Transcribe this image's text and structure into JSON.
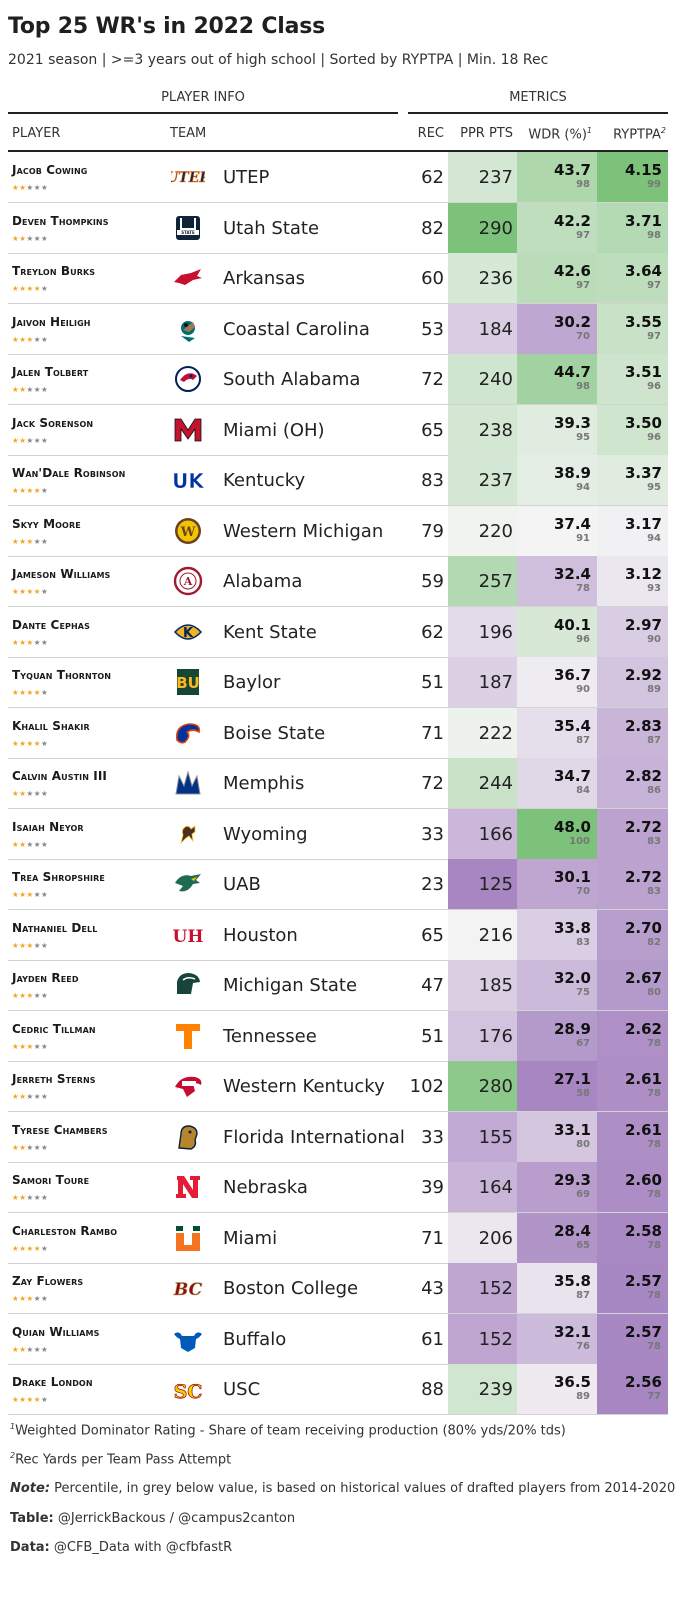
{
  "title": "Top 25 WR's in 2022 Class",
  "subtitle": "2021 season | >=3 years out of high school | Sorted by RYPTPA | Min. 18 Rec",
  "spanners": {
    "player_info": "PLAYER INFO",
    "metrics": "METRICS"
  },
  "columns": {
    "player": "PLAYER",
    "team": "TEAM",
    "rec": "REC",
    "ppr": "PPR PTS",
    "wdr": "WDR (%)",
    "wdr_sup": "1",
    "ryp": "RYPTPA",
    "ryp_sup": "2"
  },
  "chart_data": {
    "type": "table",
    "columns": [
      "PLAYER",
      "TEAM",
      "REC",
      "PPR PTS",
      "WDR (%)",
      "RYPTPA"
    ],
    "rows": [
      {
        "player": "Jacob Cowing",
        "stars": 2,
        "team": "UTEP",
        "logo": "utep-logo",
        "rec": 62,
        "ppr": 237,
        "wdr": "43.7",
        "wdr_pct": 98,
        "ryp": "4.15",
        "ryp_pct": 99
      },
      {
        "player": "Deven Thompkins",
        "stars": 2,
        "team": "Utah State",
        "logo": "utah-state-logo",
        "rec": 82,
        "ppr": 290,
        "wdr": "42.2",
        "wdr_pct": 97,
        "ryp": "3.71",
        "ryp_pct": 98
      },
      {
        "player": "Treylon Burks",
        "stars": 4,
        "team": "Arkansas",
        "logo": "arkansas-logo",
        "rec": 60,
        "ppr": 236,
        "wdr": "42.6",
        "wdr_pct": 97,
        "ryp": "3.64",
        "ryp_pct": 97
      },
      {
        "player": "Jaivon Heiligh",
        "stars": 3,
        "team": "Coastal Carolina",
        "logo": "coastal-carolina-logo",
        "rec": 53,
        "ppr": 184,
        "wdr": "30.2",
        "wdr_pct": 70,
        "ryp": "3.55",
        "ryp_pct": 97
      },
      {
        "player": "Jalen Tolbert",
        "stars": 2,
        "team": "South Alabama",
        "logo": "south-alabama-logo",
        "rec": 72,
        "ppr": 240,
        "wdr": "44.7",
        "wdr_pct": 98,
        "ryp": "3.51",
        "ryp_pct": 96
      },
      {
        "player": "Jack Sorenson",
        "stars": 2,
        "team": "Miami (OH)",
        "logo": "miami-oh-logo",
        "rec": 65,
        "ppr": 238,
        "wdr": "39.3",
        "wdr_pct": 95,
        "ryp": "3.50",
        "ryp_pct": 96
      },
      {
        "player": "Wan'Dale Robinson",
        "stars": 4,
        "team": "Kentucky",
        "logo": "kentucky-logo",
        "rec": 83,
        "ppr": 237,
        "wdr": "38.9",
        "wdr_pct": 94,
        "ryp": "3.37",
        "ryp_pct": 95
      },
      {
        "player": "Skyy Moore",
        "stars": 3,
        "team": "Western Michigan",
        "logo": "western-michigan-logo",
        "rec": 79,
        "ppr": 220,
        "wdr": "37.4",
        "wdr_pct": 91,
        "ryp": "3.17",
        "ryp_pct": 94
      },
      {
        "player": "Jameson Williams",
        "stars": 4,
        "team": "Alabama",
        "logo": "alabama-logo",
        "rec": 59,
        "ppr": 257,
        "wdr": "32.4",
        "wdr_pct": 78,
        "ryp": "3.12",
        "ryp_pct": 93
      },
      {
        "player": "Dante Cephas",
        "stars": 3,
        "team": "Kent State",
        "logo": "kent-state-logo",
        "rec": 62,
        "ppr": 196,
        "wdr": "40.1",
        "wdr_pct": 96,
        "ryp": "2.97",
        "ryp_pct": 90
      },
      {
        "player": "Tyquan Thornton",
        "stars": 4,
        "team": "Baylor",
        "logo": "baylor-logo",
        "rec": 51,
        "ppr": 187,
        "wdr": "36.7",
        "wdr_pct": 90,
        "ryp": "2.92",
        "ryp_pct": 89
      },
      {
        "player": "Khalil Shakir",
        "stars": 4,
        "team": "Boise State",
        "logo": "boise-state-logo",
        "rec": 71,
        "ppr": 222,
        "wdr": "35.4",
        "wdr_pct": 87,
        "ryp": "2.83",
        "ryp_pct": 87
      },
      {
        "player": "Calvin Austin III",
        "stars": 2,
        "team": "Memphis",
        "logo": "memphis-logo",
        "rec": 72,
        "ppr": 244,
        "wdr": "34.7",
        "wdr_pct": 84,
        "ryp": "2.82",
        "ryp_pct": 86
      },
      {
        "player": "Isaiah Neyor",
        "stars": 2,
        "team": "Wyoming",
        "logo": "wyoming-logo",
        "rec": 33,
        "ppr": 166,
        "wdr": "48.0",
        "wdr_pct": 100,
        "ryp": "2.72",
        "ryp_pct": 83
      },
      {
        "player": "Trea Shropshire",
        "stars": 3,
        "team": "UAB",
        "logo": "uab-logo",
        "rec": 23,
        "ppr": 125,
        "wdr": "30.1",
        "wdr_pct": 70,
        "ryp": "2.72",
        "ryp_pct": 83
      },
      {
        "player": "Nathaniel Dell",
        "stars": 3,
        "team": "Houston",
        "logo": "houston-logo",
        "rec": 65,
        "ppr": 216,
        "wdr": "33.8",
        "wdr_pct": 83,
        "ryp": "2.70",
        "ryp_pct": 82
      },
      {
        "player": "Jayden Reed",
        "stars": 3,
        "team": "Michigan State",
        "logo": "michigan-state-logo",
        "rec": 47,
        "ppr": 185,
        "wdr": "32.0",
        "wdr_pct": 75,
        "ryp": "2.67",
        "ryp_pct": 80
      },
      {
        "player": "Cedric Tillman",
        "stars": 3,
        "team": "Tennessee",
        "logo": "tennessee-logo",
        "rec": 51,
        "ppr": 176,
        "wdr": "28.9",
        "wdr_pct": 67,
        "ryp": "2.62",
        "ryp_pct": 78
      },
      {
        "player": "Jerreth Sterns",
        "stars": 2,
        "team": "Western Kentucky",
        "logo": "western-kentucky-logo",
        "rec": 102,
        "ppr": 280,
        "wdr": "27.1",
        "wdr_pct": 58,
        "ryp": "2.61",
        "ryp_pct": 78
      },
      {
        "player": "Tyrese Chambers",
        "stars": 2,
        "team": "Florida International",
        "logo": "fiu-logo",
        "rec": 33,
        "ppr": 155,
        "wdr": "33.1",
        "wdr_pct": 80,
        "ryp": "2.61",
        "ryp_pct": 78
      },
      {
        "player": "Samori Toure",
        "stars": 2,
        "team": "Nebraska",
        "logo": "nebraska-logo",
        "rec": 39,
        "ppr": 164,
        "wdr": "29.3",
        "wdr_pct": 69,
        "ryp": "2.60",
        "ryp_pct": 78
      },
      {
        "player": "Charleston Rambo",
        "stars": 4,
        "team": "Miami",
        "logo": "miami-logo",
        "rec": 71,
        "ppr": 206,
        "wdr": "28.4",
        "wdr_pct": 65,
        "ryp": "2.58",
        "ryp_pct": 78
      },
      {
        "player": "Zay Flowers",
        "stars": 3,
        "team": "Boston College",
        "logo": "boston-college-logo",
        "rec": 43,
        "ppr": 152,
        "wdr": "35.8",
        "wdr_pct": 87,
        "ryp": "2.57",
        "ryp_pct": 78
      },
      {
        "player": "Quian Williams",
        "stars": 2,
        "team": "Buffalo",
        "logo": "buffalo-logo",
        "rec": 61,
        "ppr": 152,
        "wdr": "32.1",
        "wdr_pct": 76,
        "ryp": "2.57",
        "ryp_pct": 78
      },
      {
        "player": "Drake London",
        "stars": 4,
        "team": "USC",
        "logo": "usc-logo",
        "rec": 88,
        "ppr": 239,
        "wdr": "36.5",
        "wdr_pct": 89,
        "ryp": "2.56",
        "ryp_pct": 77
      }
    ]
  },
  "colors": {
    "low": "#a786c2",
    "mid": "#f5f5f5",
    "high": "#7cc27a",
    "star_on": "#f5a623",
    "star_off": "#888888"
  },
  "footnotes": {
    "fn1_mark": "1",
    "fn1": "Weighted Dominator Rating - Share of team receiving production (80% yds/20% tds)",
    "fn2_mark": "2",
    "fn2": "Rec Yards per Team Pass Attempt",
    "note_label": "Note:",
    "note": " Percentile, in grey below value, is based on historical values of drafted players from 2014-2020",
    "table_label": "Table:",
    "table": " @JerrickBackous / @campus2canton",
    "data_label": "Data:",
    "data": " @CFB_Data with @cfbfastR"
  }
}
